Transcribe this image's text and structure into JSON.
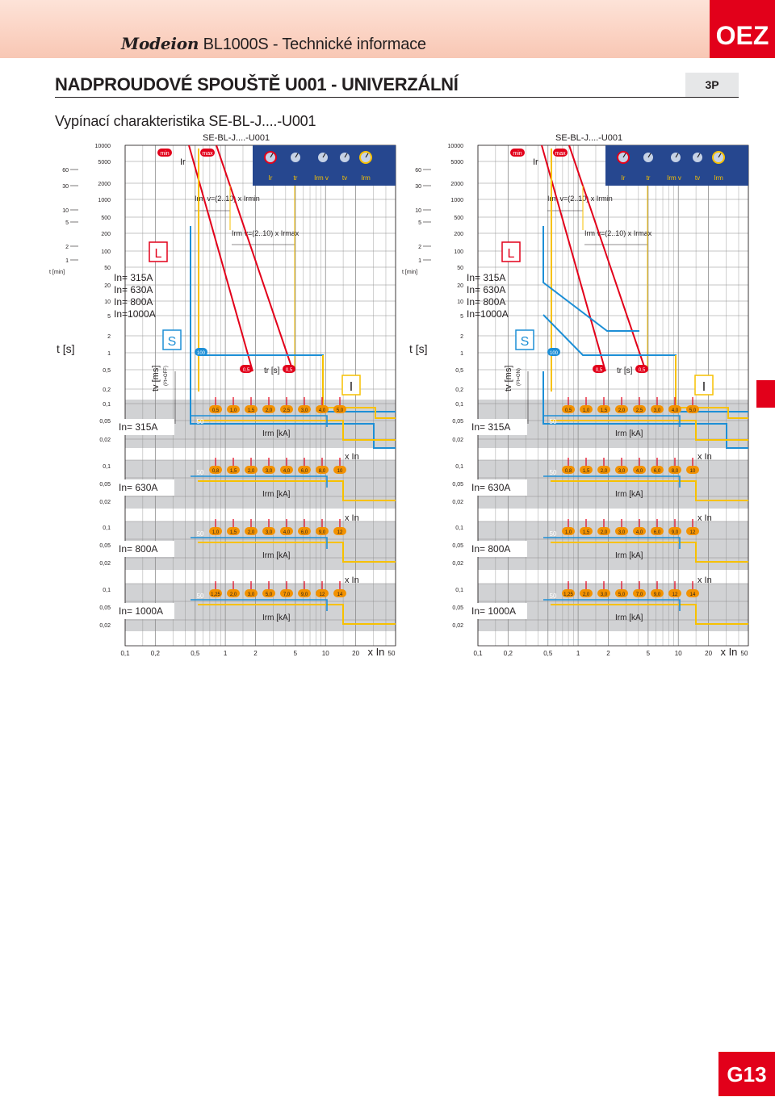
{
  "header": {
    "brand": "Modeion",
    "series": "BL1000S - Technické informace",
    "logo": "OEZ",
    "accent_color": "#e2001a"
  },
  "page": {
    "title": "NADPROUDOVÉ SPOUŠTĚ U001 - UNIVERZÁLNÍ",
    "poles": "3P",
    "subtitle": "Vypínací charakteristika SE-BL-J....-U001",
    "page_number": "G13"
  },
  "charts": [
    {
      "title": "SE-BL-J....-U001",
      "tv_label": "tv [ms]",
      "tv_note": "(I²t=OFF)",
      "settings_band": {
        "min": "min",
        "max": "max",
        "ir": "Ir",
        "knobs": [
          "Ir",
          "tr",
          "Irm v",
          "tv",
          "Irm"
        ]
      },
      "irmv_min": "Irm v=(2..10) x Irmin",
      "irmv_max": "Irm v=(2..10) x Irmax",
      "zone_L": "L",
      "zone_S": "S",
      "zone_I": "I",
      "ratings": [
        "In= 315A",
        "In= 630A",
        "In= 800A",
        "In=1000A"
      ],
      "tr_label": "tr [s]",
      "irm_label": "Irm [kA]",
      "xin": "x In",
      "fifty": "50",
      "tr_marks": [
        "0,5",
        "0,5"
      ],
      "tv_mark": "100"
    },
    {
      "title": "SE-BL-J....-U001",
      "tv_label": "tv [ms]",
      "tv_note": "(I²t=ON)",
      "settings_band": {
        "min": "min",
        "max": "max",
        "ir": "Ir",
        "knobs": [
          "Ir",
          "tr",
          "Irm v",
          "tv",
          "Irm"
        ]
      },
      "irmv_min": "Irm v=(2..10) x Irmin",
      "irmv_max": "Irm v=(2..10) x Irmax",
      "zone_L": "L",
      "zone_S": "S",
      "zone_I": "I",
      "ratings": [
        "In= 315A",
        "In= 630A",
        "In= 800A",
        "In=1000A"
      ],
      "tr_label": "tr [s]",
      "irm_label": "Irm [kA]",
      "xin": "x In",
      "fifty": "50",
      "tr_marks": [
        "0,5",
        "0,5"
      ],
      "tv_mark": "100"
    }
  ],
  "axes": {
    "t_label": "t [s]",
    "tmin_label": "t [min]",
    "min_ticks": [
      "60",
      "30",
      "10",
      "5",
      "2",
      "1"
    ],
    "s_ticks": [
      "10000",
      "5000",
      "2000",
      "1000",
      "500",
      "200",
      "100",
      "50",
      "20",
      "10",
      "5",
      "2",
      "1",
      "0,5",
      "0,2",
      "0,1",
      "0,05",
      "0,02"
    ],
    "sub_ticks": [
      "0,1",
      "0,05",
      "0,02"
    ],
    "x_ticks": [
      "0,1",
      "0,2",
      "0,5",
      "1",
      "2",
      "5",
      "10",
      "20",
      "x In",
      "50"
    ]
  },
  "irm_sets": [
    {
      "rating": "In= 315A",
      "values": [
        "0,5",
        "1,0",
        "1,5",
        "2,0",
        "2,5",
        "3,0",
        "4,0",
        "5,0"
      ]
    },
    {
      "rating": "In= 630A",
      "values": [
        "0,8",
        "1,5",
        "2,0",
        "3,0",
        "4,0",
        "6,0",
        "8,0",
        "10"
      ]
    },
    {
      "rating": "In= 800A",
      "values": [
        "1,0",
        "1,5",
        "2,0",
        "3,0",
        "4,0",
        "6,0",
        "9,0",
        "12"
      ]
    },
    {
      "rating": "In= 1000A",
      "values": [
        "1,25",
        "2,0",
        "3,0",
        "5,0",
        "7,0",
        "9,0",
        "12",
        "14"
      ]
    }
  ],
  "colors": {
    "red": "#e2001a",
    "blue": "#1d8fd6",
    "yellow": "#f7c100",
    "band": "#26478f",
    "orange": "#f39200",
    "grid": "#8c8c8c",
    "gray": "#d1d2d4"
  }
}
